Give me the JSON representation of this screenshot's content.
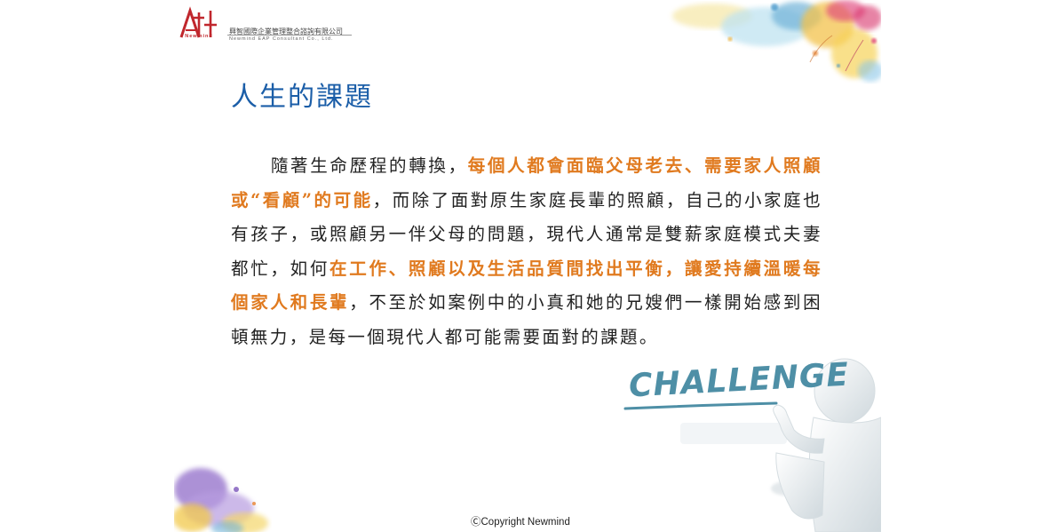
{
  "header": {
    "logo_name": "Newmind",
    "company_cn": "興智國際企業管理整合諮詢有限公司",
    "company_en": "Newmind EAP Consultant Co., Ltd."
  },
  "slide": {
    "title": "人生的課題",
    "paragraph": [
      {
        "text": "隨著生命歷程的轉換，",
        "highlight": false
      },
      {
        "text": "每個人都會面臨父母老去、需要家人照顧或“看顧”的可能",
        "highlight": true
      },
      {
        "text": "，而除了面對原生家庭長輩的照顧，自己的小家庭也有孩子，或照顧另一伴父母的問題，現代人通常是雙薪家庭模式夫妻都忙，如何",
        "highlight": false
      },
      {
        "text": "在工作、照顧以及生活品質間找出平衡，讓愛持續溫暖每個家人和長輩",
        "highlight": true
      },
      {
        "text": "，不至於如案例中的小真和她的兄嫂們一樣開始感到困頓無力，是每一個現代人都可能需要面對的課題。",
        "highlight": false
      }
    ],
    "challenge_word": "CHALLENGE",
    "copyright": "ⒸCopyright Newmind"
  },
  "colors": {
    "title": "#1b5ea8",
    "highlight": "#e07a1f",
    "logo_red": "#c0272d",
    "challenge": "#4e8fa6"
  }
}
